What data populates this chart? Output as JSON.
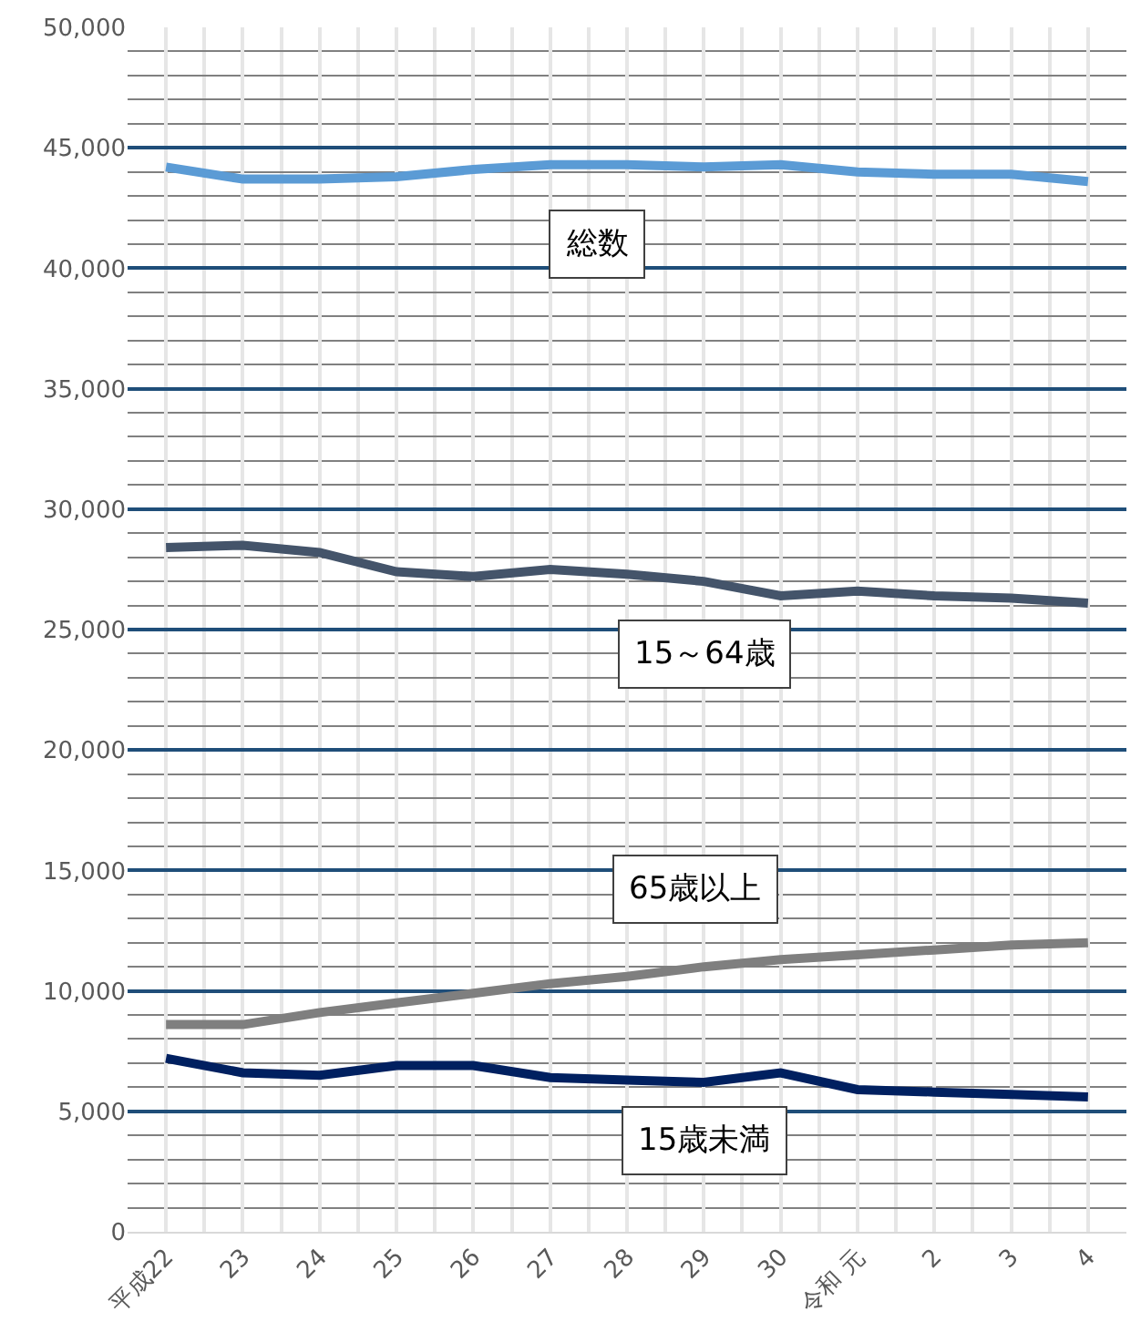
{
  "chart_data": {
    "type": "line",
    "categories": [
      "平成22",
      "23",
      "24",
      "25",
      "26",
      "27",
      "28",
      "29",
      "30",
      "令和 元",
      "2",
      "3",
      "4"
    ],
    "series": [
      {
        "name": "総数",
        "color": "#5b9bd5",
        "values": [
          44200,
          43700,
          43700,
          43800,
          44100,
          44300,
          44300,
          44200,
          44300,
          44000,
          43900,
          43900,
          43600
        ]
      },
      {
        "name": "15～64歳",
        "color": "#44546a",
        "values": [
          28400,
          28500,
          28200,
          27400,
          27200,
          27500,
          27300,
          27000,
          26400,
          26600,
          26400,
          26300,
          26100
        ]
      },
      {
        "name": "65歳以上",
        "color": "#7f7f7f",
        "values": [
          8600,
          8600,
          9100,
          9500,
          9900,
          10300,
          10600,
          11000,
          11300,
          11500,
          11700,
          11900,
          12000
        ]
      },
      {
        "name": "15歳未満",
        "color": "#002060",
        "values": [
          7200,
          6600,
          6500,
          6900,
          6900,
          6400,
          6300,
          6200,
          6600,
          5900,
          5800,
          5700,
          5600
        ]
      }
    ],
    "ylim": [
      0,
      50000
    ],
    "yticks": [
      0,
      {
        "value": 5000,
        "label": "5,000"
      },
      {
        "value": 10000,
        "label": "10,000"
      },
      {
        "value": 15000,
        "label": "15,000"
      },
      {
        "value": 20000,
        "label": "20,000"
      },
      {
        "value": 25000,
        "label": "25,000"
      },
      {
        "value": 30000,
        "label": "30,000"
      },
      {
        "value": 35000,
        "label": "35,000"
      },
      {
        "value": 40000,
        "label": "40,000"
      },
      {
        "value": 45000,
        "label": "45,000"
      },
      {
        "value": 50000,
        "label": "50,000"
      }
    ],
    "grid": true,
    "legend": false,
    "marker": "none",
    "line_style": "solid"
  }
}
